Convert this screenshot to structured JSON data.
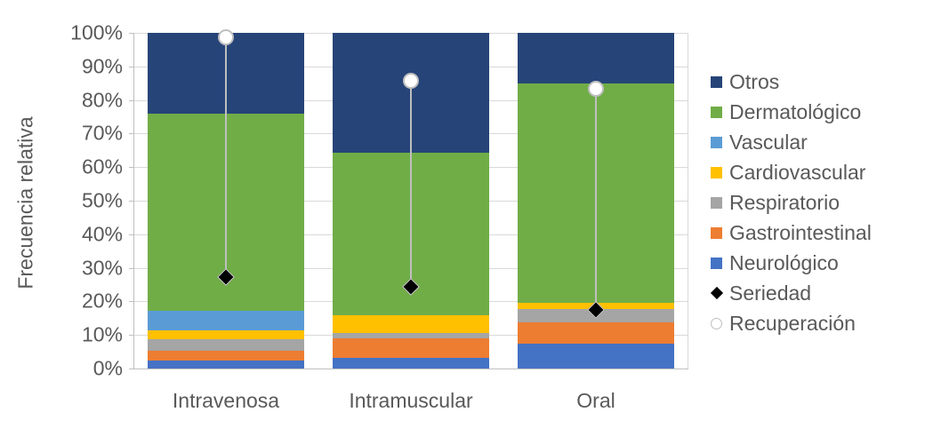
{
  "chart_data": {
    "type": "bar",
    "stacked": true,
    "orientation": "vertical",
    "title": "",
    "xlabel": "",
    "ylabel": "Frecuencia relativa",
    "ylim": [
      0,
      100
    ],
    "ytick_step": 10,
    "ytick_labels": [
      "0%",
      "10%",
      "20%",
      "30%",
      "40%",
      "50%",
      "60%",
      "70%",
      "80%",
      "90%",
      "100%"
    ],
    "grid": true,
    "legend_position": "right",
    "categories": [
      "Intravenosa",
      "Intramuscular",
      "Oral"
    ],
    "bar_series": [
      {
        "name": "Neurológico",
        "color": "#4472c4",
        "values": [
          2.4,
          3.2,
          7.5
        ]
      },
      {
        "name": "Gastrointestinal",
        "color": "#ed7d31",
        "values": [
          2.8,
          5.7,
          6.3
        ]
      },
      {
        "name": "Respiratorio",
        "color": "#a5a5a5",
        "values": [
          3.5,
          1.6,
          4.0
        ]
      },
      {
        "name": "Cardiovascular",
        "color": "#ffc000",
        "values": [
          2.7,
          5.3,
          1.7
        ]
      },
      {
        "name": "Vascular",
        "color": "#5b9bd5",
        "values": [
          5.7,
          0.0,
          0.0
        ]
      },
      {
        "name": "Dermatológico",
        "color": "#70ad47",
        "values": [
          58.9,
          48.5,
          65.4
        ]
      },
      {
        "name": "Otros",
        "color": "#264478",
        "values": [
          24.0,
          35.7,
          15.1
        ]
      }
    ],
    "point_series": [
      {
        "name": "Seriedad",
        "marker": "diamond",
        "fill": "#000000",
        "outline": "#d9d9d9",
        "values": [
          27.2,
          24.3,
          17.5
        ]
      },
      {
        "name": "Recuperación",
        "marker": "circle",
        "fill": "#ffffff",
        "outline": "#bfbfbf",
        "values": [
          98.8,
          85.8,
          83.3
        ]
      }
    ],
    "connector_lines": "high-low between Seriedad and Recuperación per category"
  },
  "legend": {
    "items": [
      {
        "label": "Otros",
        "swatch": "square",
        "color": "#264478"
      },
      {
        "label": "Dermatológico",
        "swatch": "square",
        "color": "#70ad47"
      },
      {
        "label": "Vascular",
        "swatch": "square",
        "color": "#5b9bd5"
      },
      {
        "label": "Cardiovascular",
        "swatch": "square",
        "color": "#ffc000"
      },
      {
        "label": "Respiratorio",
        "swatch": "square",
        "color": "#a5a5a5"
      },
      {
        "label": "Gastrointestinal",
        "swatch": "square",
        "color": "#ed7d31"
      },
      {
        "label": "Neurológico",
        "swatch": "square",
        "color": "#4472c4"
      },
      {
        "label": "Seriedad",
        "swatch": "diamond",
        "color": "#000000"
      },
      {
        "label": "Recuperación",
        "swatch": "circle",
        "color": "#ffffff"
      }
    ]
  },
  "colors": {
    "background": "#ffffff",
    "gridline": "#d9d9d9",
    "axis_line": "#bfbfbf",
    "tick_text": "#595959",
    "hilo_line": "#bfbfbf"
  }
}
